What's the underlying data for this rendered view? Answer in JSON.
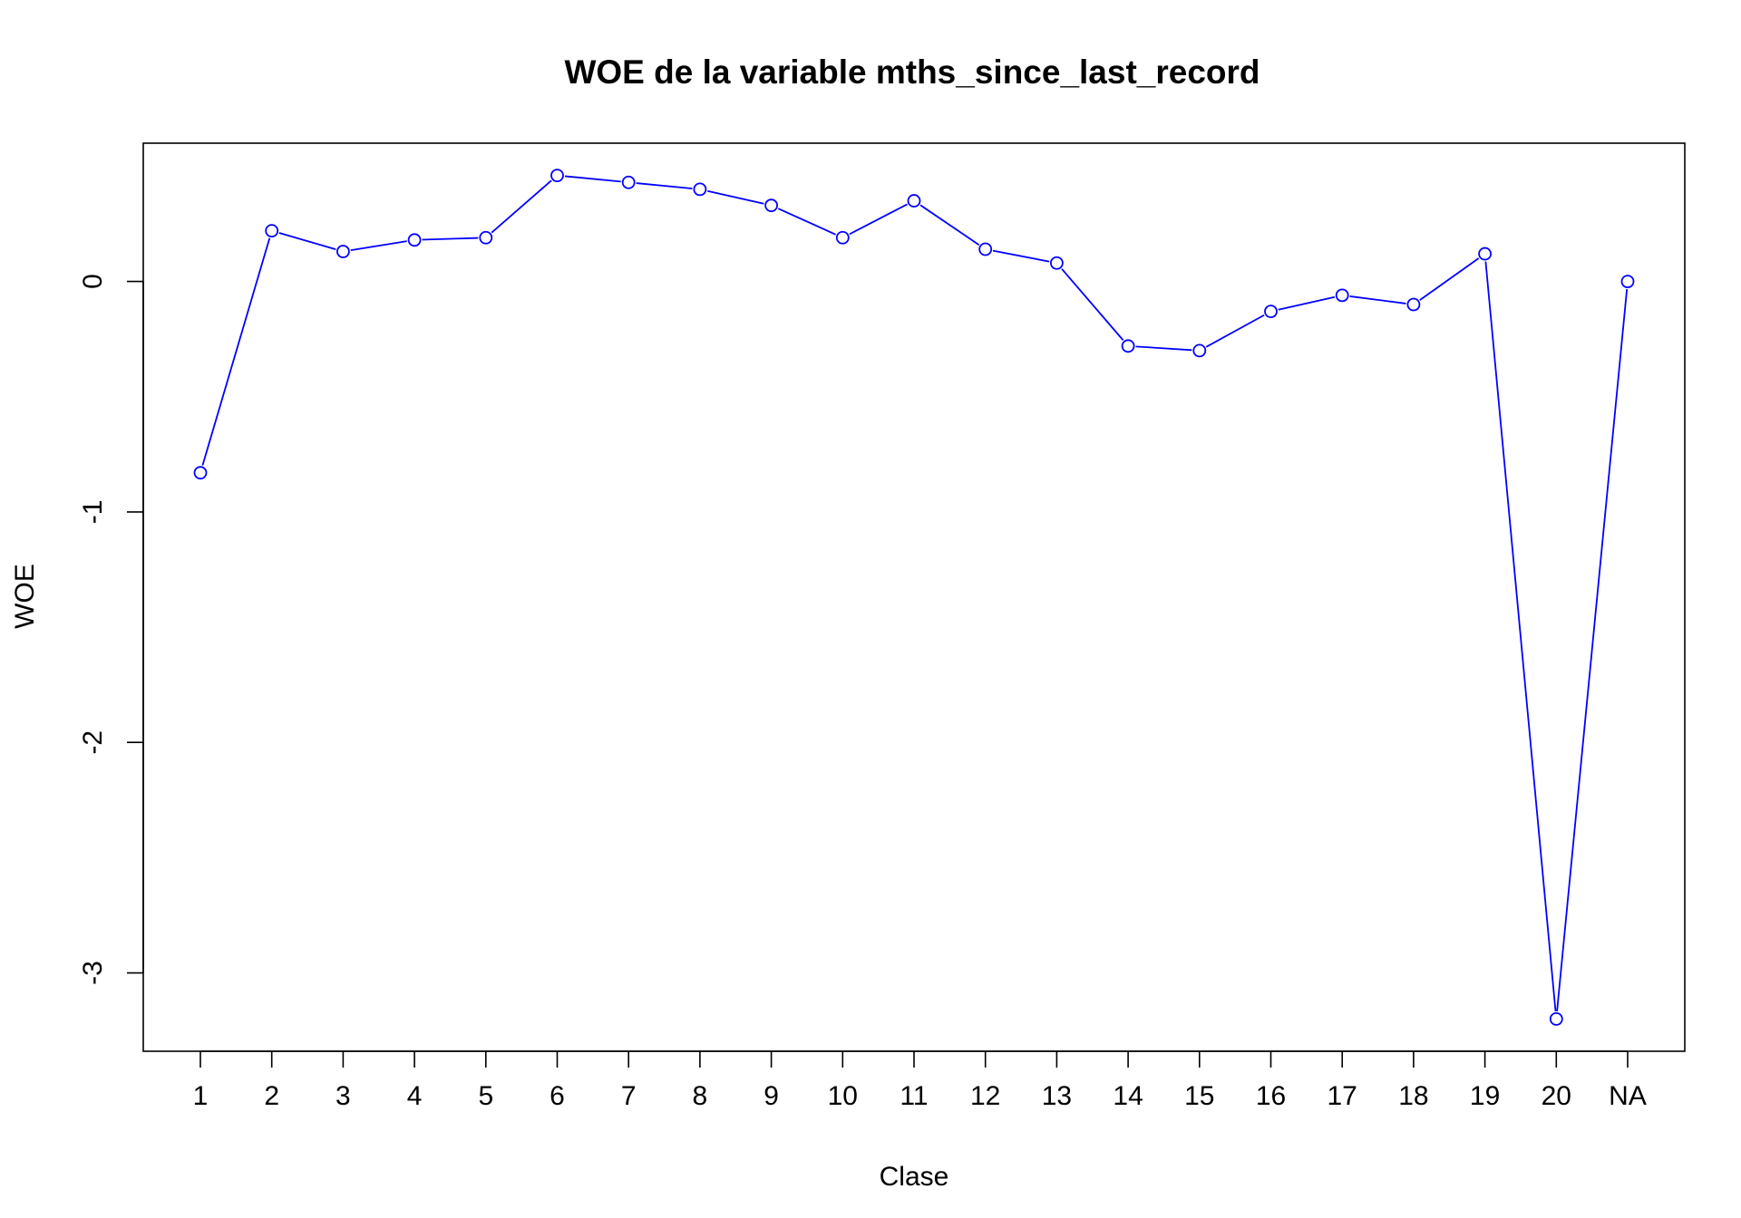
{
  "chart_data": {
    "type": "line",
    "title": "WOE de la variable mths_since_last_record",
    "xlabel": "Clase",
    "ylabel": "WOE",
    "categories": [
      "1",
      "2",
      "3",
      "4",
      "5",
      "6",
      "7",
      "8",
      "9",
      "10",
      "11",
      "12",
      "13",
      "14",
      "15",
      "16",
      "17",
      "18",
      "19",
      "20",
      "NA"
    ],
    "series": [
      {
        "values": [
          -0.83,
          0.22,
          0.13,
          0.18,
          0.19,
          0.46,
          0.43,
          0.4,
          0.33,
          0.19,
          0.35,
          0.14,
          0.08,
          -0.28,
          -0.3,
          -0.13,
          -0.06,
          -0.1,
          0.12,
          -3.2,
          0.0
        ]
      }
    ],
    "yticks": [
      0,
      -1,
      -2,
      -3
    ],
    "ylim": [
      -3.34,
      0.6
    ],
    "grid": false,
    "color": "#0000ff",
    "marker": "open-circle"
  }
}
